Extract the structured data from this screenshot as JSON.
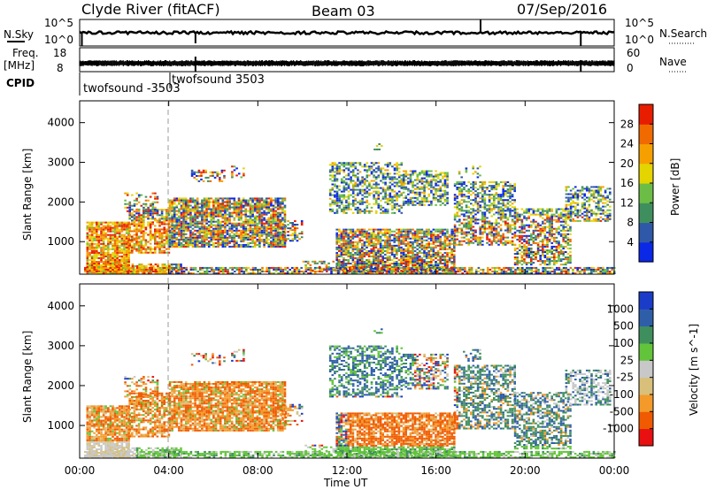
{
  "header": {
    "station": "Clyde River (fitACF)",
    "beam": "Beam 03",
    "date": "07/Sep/2016"
  },
  "left_labels": {
    "nsky": "N.Sky",
    "freq": "Freq.",
    "freq_unit": "[MHz]",
    "cpid": "CPID"
  },
  "right_labels": {
    "nsearch": "N.Search",
    "nave": "Nave"
  },
  "noise_panel": {
    "left_ticks": [
      "10^5",
      "10^0"
    ],
    "right_ticks": [
      "10^5",
      "10^0"
    ]
  },
  "freq_panel": {
    "left_ticks": [
      "18",
      "8"
    ],
    "right_ticks": [
      "60",
      "0"
    ]
  },
  "cpid_labels": [
    "twofsound -3503",
    "twofsound 3503"
  ],
  "colors": {
    "power_scale": [
      "#0a28e6",
      "#2f58a9",
      "#3f8f5e",
      "#6cbd45",
      "#e4d400",
      "#f5a000",
      "#f06a00",
      "#e81d00"
    ],
    "velocity_scale": [
      "#e81010",
      "#f05a00",
      "#f39a2a",
      "#d8c07a",
      "#c8c8c8",
      "#62c43a",
      "#3f8f5e",
      "#2f5ea9",
      "#1a3cc8"
    ]
  },
  "chart_data": [
    {
      "type": "heatmap",
      "panel": "power",
      "title": "",
      "xlabel": "Time UT",
      "ylabel": "Slant Range [km]",
      "x_ticks": [
        "00:00",
        "04:00",
        "08:00",
        "12:00",
        "16:00",
        "20:00",
        "00:00"
      ],
      "y_ticks": [
        1000,
        2000,
        3000,
        4000
      ],
      "ylim": [
        180,
        4550
      ],
      "xlim_hours": [
        0,
        24
      ],
      "colorbar": {
        "label": "Power [dB]",
        "ticks": [
          4,
          8,
          12,
          16,
          20,
          24,
          28
        ],
        "range": [
          0,
          32
        ]
      }
    },
    {
      "type": "heatmap",
      "panel": "velocity",
      "title": "",
      "xlabel": "Time UT",
      "ylabel": "Slant Range [km]",
      "x_ticks": [
        "00:00",
        "04:00",
        "08:00",
        "12:00",
        "16:00",
        "20:00",
        "00:00"
      ],
      "y_ticks": [
        1000,
        2000,
        3000,
        4000
      ],
      "ylim": [
        180,
        4550
      ],
      "xlim_hours": [
        0,
        24
      ],
      "colorbar": {
        "label": "Velocity [m s^-1]",
        "ticks": [
          "1000",
          "500",
          "100",
          "25",
          "-25",
          "-100",
          "-500",
          "-1000"
        ]
      }
    }
  ]
}
